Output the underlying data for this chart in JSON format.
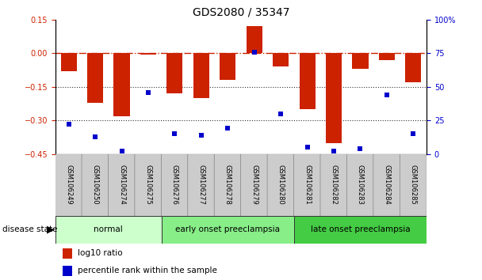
{
  "title": "GDS2080 / 35347",
  "samples": [
    "GSM106249",
    "GSM106250",
    "GSM106274",
    "GSM106275",
    "GSM106276",
    "GSM106277",
    "GSM106278",
    "GSM106279",
    "GSM106280",
    "GSM106281",
    "GSM106282",
    "GSM106283",
    "GSM106284",
    "GSM106285"
  ],
  "log10_ratio": [
    -0.08,
    -0.22,
    -0.28,
    -0.005,
    -0.18,
    -0.2,
    -0.12,
    0.12,
    -0.06,
    -0.25,
    -0.4,
    -0.07,
    -0.03,
    -0.13
  ],
  "percentile_rank": [
    22,
    13,
    2,
    46,
    15,
    14,
    19,
    76,
    30,
    5,
    2,
    4,
    44,
    15
  ],
  "ylim_left": [
    -0.45,
    0.15
  ],
  "ylim_right": [
    0,
    100
  ],
  "yticks_left": [
    0.15,
    0.0,
    -0.15,
    -0.3,
    -0.45
  ],
  "yticks_right": [
    100,
    75,
    50,
    25,
    0
  ],
  "bar_color": "#cc2200",
  "dot_color": "#0000cc",
  "hline_color": "#cc2200",
  "dot_line_color": "#333333",
  "groups": [
    {
      "label": "normal",
      "start": 0,
      "end": 3,
      "color": "#ccffcc"
    },
    {
      "label": "early onset preeclampsia",
      "start": 4,
      "end": 8,
      "color": "#88ee88"
    },
    {
      "label": "late onset preeclampsia",
      "start": 9,
      "end": 13,
      "color": "#44cc44"
    }
  ],
  "legend_items": [
    {
      "label": "log10 ratio",
      "color": "#cc2200"
    },
    {
      "label": "percentile rank within the sample",
      "color": "#0000cc"
    }
  ],
  "background_color": "#ffffff",
  "label_box_color": "#cccccc",
  "label_box_edge": "#888888"
}
